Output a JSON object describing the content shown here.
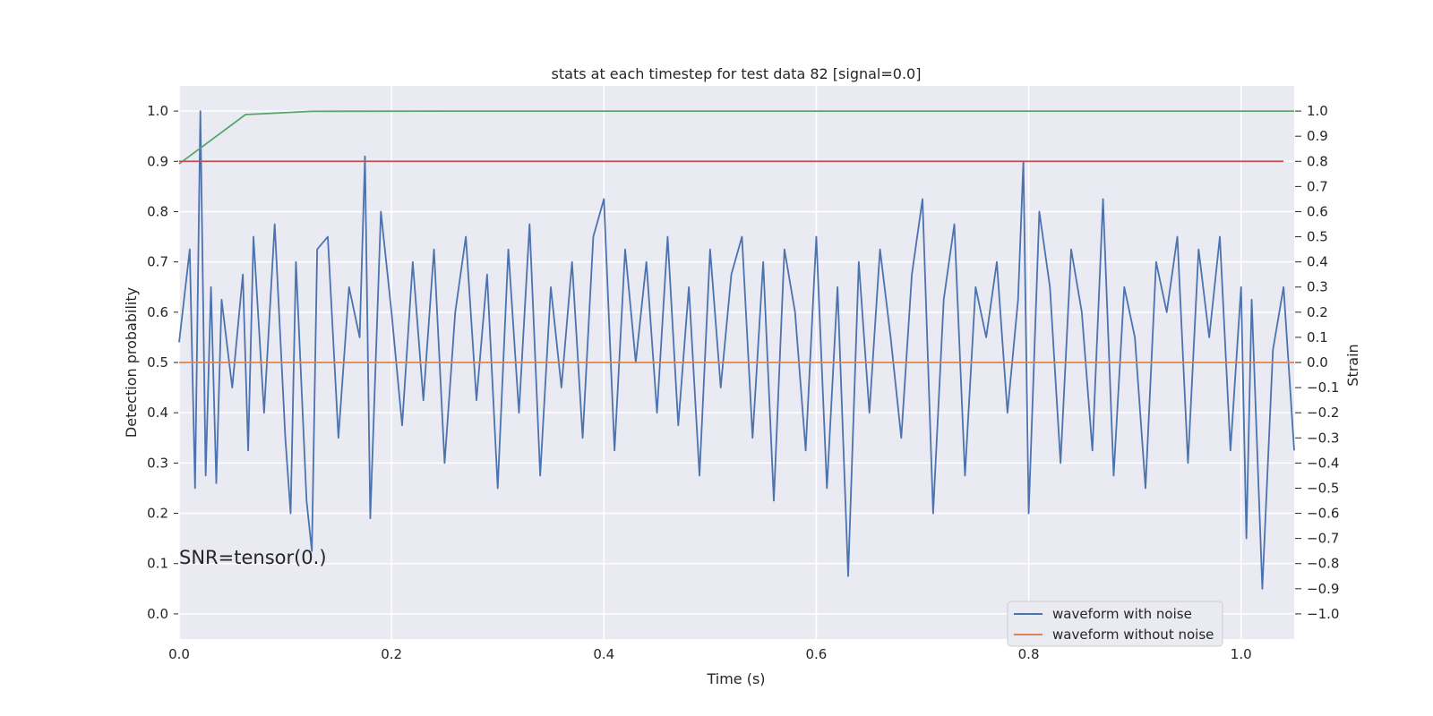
{
  "chart_data": {
    "type": "line",
    "title": "stats at each timestep for test data 82 [signal=0.0]",
    "xlabel": "Time (s)",
    "ylabel_left": "Detection probability",
    "ylabel_right": "Strain",
    "annotation": "SNR=tensor(0.)",
    "xlim": [
      0.0,
      1.05
    ],
    "ylim_left": [
      -0.05,
      1.05
    ],
    "ylim_right": [
      -1.1,
      1.1
    ],
    "x_ticks": [
      "0.0",
      "0.2",
      "0.4",
      "0.6",
      "0.8",
      "1.0"
    ],
    "x_tick_values": [
      0.0,
      0.2,
      0.4,
      0.6,
      0.8,
      1.0
    ],
    "y_left_ticks": [
      "0.0",
      "0.1",
      "0.2",
      "0.3",
      "0.4",
      "0.5",
      "0.6",
      "0.7",
      "0.8",
      "0.9",
      "1.0"
    ],
    "y_left_tick_values": [
      0.0,
      0.1,
      0.2,
      0.3,
      0.4,
      0.5,
      0.6,
      0.7,
      0.8,
      0.9,
      1.0
    ],
    "y_right_ticks": [
      "−1.0",
      "−0.9",
      "−0.8",
      "−0.7",
      "−0.6",
      "−0.5",
      "−0.4",
      "−0.3",
      "−0.2",
      "−0.1",
      "0.0",
      "0.1",
      "0.2",
      "0.3",
      "0.4",
      "0.5",
      "0.6",
      "0.7",
      "0.8",
      "0.9",
      "1.0"
    ],
    "y_right_tick_values": [
      -1.0,
      -0.9,
      -0.8,
      -0.7,
      -0.6,
      -0.5,
      -0.4,
      -0.3,
      -0.2,
      -0.1,
      0.0,
      0.1,
      0.2,
      0.3,
      0.4,
      0.5,
      0.6,
      0.7,
      0.8,
      0.9,
      1.0
    ],
    "grid": true,
    "legend_position": "lower-right",
    "series": [
      {
        "name": "waveform with noise",
        "axis": "right",
        "color": "#4c72b0",
        "x": [
          0.0,
          0.01,
          0.015,
          0.02,
          0.025,
          0.03,
          0.035,
          0.04,
          0.05,
          0.06,
          0.065,
          0.07,
          0.08,
          0.09,
          0.1,
          0.105,
          0.11,
          0.12,
          0.125,
          0.13,
          0.14,
          0.15,
          0.16,
          0.17,
          0.175,
          0.18,
          0.19,
          0.2,
          0.21,
          0.22,
          0.23,
          0.24,
          0.25,
          0.26,
          0.27,
          0.28,
          0.29,
          0.3,
          0.31,
          0.32,
          0.33,
          0.34,
          0.35,
          0.36,
          0.37,
          0.38,
          0.39,
          0.4,
          0.41,
          0.42,
          0.43,
          0.44,
          0.45,
          0.46,
          0.47,
          0.48,
          0.49,
          0.5,
          0.51,
          0.52,
          0.53,
          0.54,
          0.55,
          0.56,
          0.57,
          0.58,
          0.59,
          0.6,
          0.61,
          0.62,
          0.63,
          0.64,
          0.65,
          0.66,
          0.67,
          0.68,
          0.69,
          0.7,
          0.71,
          0.72,
          0.73,
          0.74,
          0.75,
          0.76,
          0.77,
          0.78,
          0.79,
          0.795,
          0.8,
          0.81,
          0.82,
          0.83,
          0.84,
          0.85,
          0.86,
          0.87,
          0.88,
          0.89,
          0.9,
          0.91,
          0.92,
          0.93,
          0.94,
          0.95,
          0.96,
          0.97,
          0.98,
          0.99,
          1.0,
          1.005,
          1.01,
          1.02,
          1.03,
          1.04,
          1.05
        ],
        "y": [
          0.08,
          0.45,
          -0.5,
          1.0,
          -0.45,
          0.3,
          -0.48,
          0.25,
          -0.1,
          0.35,
          -0.35,
          0.5,
          -0.2,
          0.55,
          -0.3,
          -0.6,
          0.4,
          -0.55,
          -0.75,
          0.45,
          0.5,
          -0.3,
          0.3,
          0.1,
          0.82,
          -0.62,
          0.6,
          0.2,
          -0.25,
          0.4,
          -0.15,
          0.45,
          -0.4,
          0.2,
          0.5,
          -0.15,
          0.35,
          -0.5,
          0.45,
          -0.2,
          0.55,
          -0.45,
          0.3,
          -0.1,
          0.4,
          -0.3,
          0.5,
          0.65,
          -0.35,
          0.45,
          0.0,
          0.4,
          -0.2,
          0.5,
          -0.25,
          0.3,
          -0.45,
          0.45,
          -0.1,
          0.35,
          0.5,
          -0.3,
          0.4,
          -0.55,
          0.45,
          0.2,
          -0.35,
          0.5,
          -0.5,
          0.3,
          -0.85,
          0.4,
          -0.2,
          0.45,
          0.1,
          -0.3,
          0.35,
          0.65,
          -0.6,
          0.25,
          0.55,
          -0.45,
          0.3,
          0.1,
          0.4,
          -0.2,
          0.25,
          0.8,
          -0.6,
          0.6,
          0.3,
          -0.4,
          0.45,
          0.2,
          -0.35,
          0.65,
          -0.45,
          0.3,
          0.1,
          -0.5,
          0.4,
          0.2,
          0.5,
          -0.4,
          0.45,
          0.1,
          0.5,
          -0.35,
          0.3,
          -0.7,
          0.25,
          -0.9,
          0.05,
          0.3,
          -0.35
        ]
      },
      {
        "name": "waveform without noise",
        "axis": "right",
        "color": "#dd8452",
        "x": [
          0.0,
          1.05
        ],
        "y": [
          0.0,
          0.0
        ]
      },
      {
        "axis": "left",
        "color": "#55a868",
        "x": [
          0.0,
          0.0625,
          0.125,
          0.25,
          0.5,
          0.75,
          1.0,
          1.05
        ],
        "y": [
          0.895,
          0.993,
          0.9995,
          1.0,
          1.0,
          1.0,
          1.0,
          1.0
        ]
      },
      {
        "axis": "left",
        "color": "#c44e52",
        "x": [
          0.0,
          1.04
        ],
        "y": [
          0.9,
          0.9
        ]
      }
    ]
  }
}
